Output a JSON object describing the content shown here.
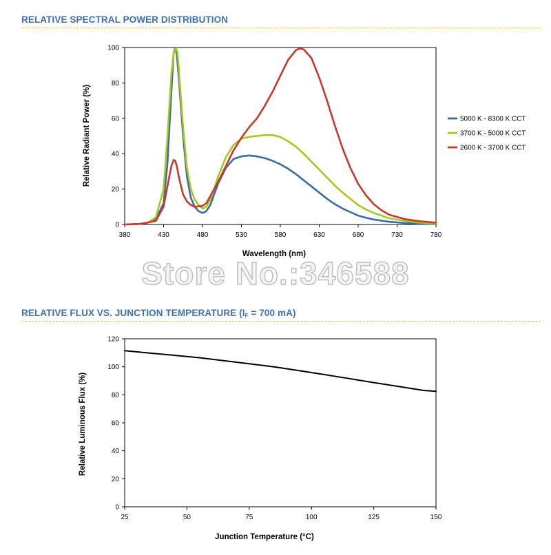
{
  "sections": [
    {
      "title": "RELATIVE SPECTRAL POWER DISTRIBUTION"
    },
    {
      "title_main": "RELATIVE FLUX VS. JUNCTION TEMPERATURE (I",
      "title_sub": "F",
      "title_tail": " = 700 mA)"
    }
  ],
  "watermark": "Store No.:346588",
  "colors": {
    "section_title": "#3c6fb0",
    "divider": "#f0c419",
    "blue_series": "#3a6aa8",
    "green_series": "#a6c81e",
    "red_series": "#c8382a",
    "flux_line": "#000000"
  },
  "chart_data": [
    {
      "type": "line",
      "xlabel": "Wavelength (nm)",
      "ylabel": "Relative Radiant Power (%)",
      "xlim": [
        380,
        780
      ],
      "ylim": [
        0,
        100
      ],
      "xticks": [
        380,
        430,
        480,
        530,
        580,
        630,
        680,
        730,
        780
      ],
      "yticks": [
        0,
        20,
        40,
        60,
        80,
        100
      ],
      "grid": false,
      "legend": "right",
      "series": [
        {
          "name": "5000 K - 8300 K CCT",
          "color": "#3a6aa8",
          "x": [
            380,
            400,
            410,
            420,
            430,
            435,
            440,
            443,
            445,
            447,
            450,
            455,
            460,
            465,
            470,
            475,
            480,
            485,
            490,
            495,
            500,
            510,
            520,
            530,
            540,
            550,
            560,
            570,
            580,
            590,
            600,
            610,
            620,
            630,
            640,
            650,
            660,
            670,
            680,
            690,
            700,
            720,
            740,
            760,
            780
          ],
          "y": [
            0,
            0.3,
            1,
            3,
            12,
            35,
            75,
            97,
            100,
            96,
            80,
            50,
            27,
            15,
            10,
            7.5,
            6.5,
            7.5,
            11,
            17,
            23,
            32,
            37,
            38.5,
            39,
            38.5,
            37.5,
            36,
            34,
            31.5,
            28.5,
            25,
            21.5,
            18,
            14.5,
            11.5,
            9,
            7,
            5,
            3.8,
            2.8,
            1.5,
            0.8,
            0.4,
            0.2
          ]
        },
        {
          "name": "3700 K - 5000 K CCT",
          "color": "#a6c81e",
          "x": [
            380,
            400,
            410,
            420,
            430,
            435,
            440,
            443,
            446,
            448,
            450,
            455,
            460,
            465,
            470,
            475,
            480,
            485,
            490,
            495,
            500,
            510,
            520,
            530,
            540,
            550,
            560,
            570,
            580,
            590,
            600,
            610,
            620,
            630,
            640,
            650,
            660,
            670,
            680,
            690,
            700,
            720,
            740,
            760,
            780
          ],
          "y": [
            0,
            0.3,
            1,
            4,
            20,
            50,
            85,
            97,
            100,
            97,
            85,
            55,
            32,
            20,
            14,
            11,
            9,
            10,
            14,
            20,
            27,
            38,
            45,
            48.5,
            49.5,
            50,
            50.5,
            50.5,
            49.5,
            47,
            44,
            40,
            35.5,
            31,
            26.5,
            22,
            18,
            14.5,
            11,
            8.5,
            6.5,
            3.5,
            2,
            1,
            0.5
          ]
        },
        {
          "name": "2600 K - 3700 K CCT",
          "color": "#c8382a",
          "x": [
            380,
            400,
            420,
            430,
            435,
            440,
            443,
            445,
            447,
            450,
            455,
            460,
            465,
            470,
            480,
            485,
            490,
            500,
            510,
            520,
            530,
            540,
            550,
            560,
            570,
            580,
            590,
            600,
            605,
            610,
            620,
            630,
            640,
            650,
            660,
            670,
            680,
            690,
            700,
            710,
            720,
            740,
            760,
            780
          ],
          "y": [
            0,
            0.3,
            2,
            10,
            22,
            33,
            36.5,
            36,
            33,
            26,
            17,
            13,
            11,
            10,
            10.5,
            12,
            16,
            24,
            33,
            42,
            49,
            55,
            60,
            67,
            75,
            84,
            93,
            98.5,
            99.5,
            99,
            94,
            83,
            70,
            56,
            43,
            32,
            23,
            16.5,
            11.5,
            8,
            5.5,
            3,
            1.8,
            1
          ]
        }
      ]
    },
    {
      "type": "line",
      "xlabel": "Junction Temperature (°C)",
      "ylabel": "Relative Luminous Flux (%)",
      "xlim": [
        25,
        150
      ],
      "ylim": [
        0,
        120
      ],
      "xticks": [
        25,
        50,
        75,
        100,
        125,
        150
      ],
      "yticks": [
        0,
        20,
        40,
        60,
        80,
        100,
        120
      ],
      "grid": false,
      "series": [
        {
          "color": "#000000",
          "x": [
            25,
            35,
            45,
            55,
            65,
            75,
            85,
            95,
            105,
            115,
            125,
            135,
            145,
            150
          ],
          "y": [
            111.5,
            109.8,
            108.2,
            106.5,
            104.3,
            102.2,
            100,
            97.3,
            94.5,
            91.6,
            88.7,
            85.9,
            83.1,
            82.5
          ]
        }
      ]
    }
  ]
}
